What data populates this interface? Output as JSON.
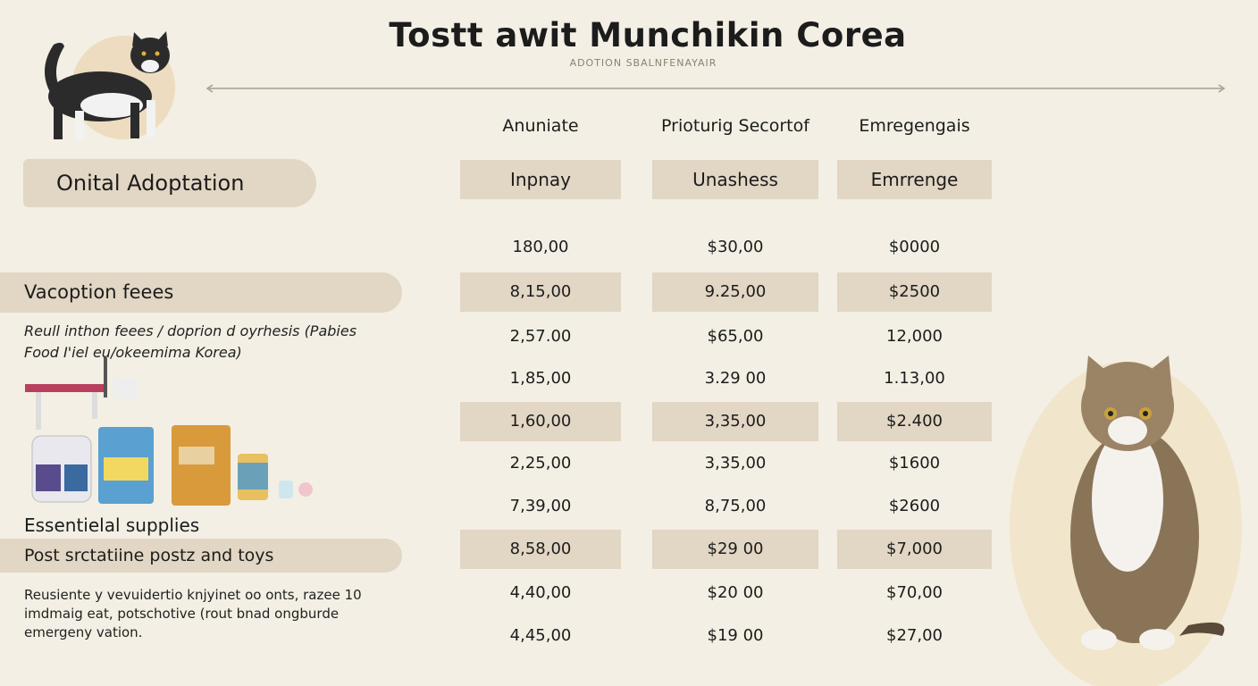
{
  "header": {
    "title": "Tostt awit Munchikin Corea",
    "subtitle": "ADOTION SBALNFENAYAIR"
  },
  "sidebar": {
    "section_title": "Onital Adoptation",
    "fees_title": "Vacoption feees",
    "fees_description": [
      "Reull inthon feees / doprion d oyrhesis (Pabies",
      "Food I'iel eu/okeemima Korea)"
    ],
    "supplies_title": "Essentielal supplies",
    "posts_title": "Post srctatiine postz and toys",
    "posts_description": [
      "Reusiente y vevuidertio knjyinet oo onts, razee 10",
      "imdmaig eat, potschotive (rout bnad ongburde",
      "emergeny vation."
    ]
  },
  "table": {
    "group_headers": [
      "Anuniate",
      "Prioturig Secortof",
      "Emregengais"
    ],
    "column_headers": [
      "Inpnay",
      "Unashess",
      "Emrrenge"
    ],
    "rows": [
      [
        "180,00",
        "$30,00",
        "$0000"
      ],
      [
        "8,15,00",
        "9.25,00",
        "$2500"
      ],
      [
        "2,57.00",
        "$65,00",
        "12,000"
      ],
      [
        "1,85,00",
        "3.29 00",
        "1.13,00"
      ],
      [
        "1,60,00",
        "3,35,00",
        "$2.400"
      ],
      [
        "2,25,00",
        "3,35,00",
        "$1600"
      ],
      [
        "7,39,00",
        "8,75,00",
        "$2600"
      ],
      [
        "8,58,00",
        "$29 00",
        "$7,000"
      ],
      [
        "4,40,00",
        "$20 00",
        "$70,00"
      ],
      [
        "4,45,00",
        "$19 00",
        "$27,00"
      ]
    ]
  }
}
